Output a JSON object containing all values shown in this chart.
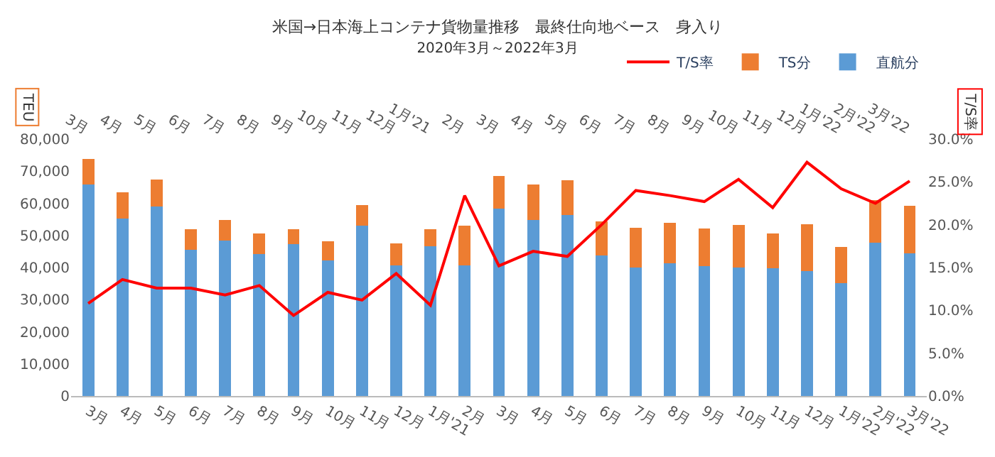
{
  "chart_data": {
    "type": "bar",
    "title": "米国→日本海上コンテナ貨物量推移　最終仕向地ベース　身入り",
    "subtitle": "2020年3月～2022年3月",
    "ylabel": "TEU",
    "y2label": "T/S率",
    "categories": [
      "3月",
      "4月",
      "5月",
      "6月",
      "7月",
      "8月",
      "9月",
      "10月",
      "11月",
      "12月",
      "1月'21",
      "2月",
      "3月",
      "4月",
      "5月",
      "6月",
      "7月",
      "8月",
      "9月",
      "10月",
      "11月",
      "12月",
      "1月'22",
      "2月'22",
      "3月'22"
    ],
    "stacked": true,
    "legend": "top right",
    "grid": false,
    "marker": "none",
    "line_style": "solid",
    "series": [
      {
        "name": "直航分",
        "color": "#5b9bd5",
        "values": [
          65900,
          55200,
          58900,
          45500,
          48400,
          44100,
          47400,
          42300,
          53000,
          40700,
          46600,
          40700,
          58400,
          54800,
          56400,
          43700,
          39900,
          41400,
          40400,
          39900,
          39700,
          39000,
          35200,
          47700,
          44500
        ]
      },
      {
        "name": "TS分",
        "color": "#ed7d31",
        "values": [
          7900,
          8300,
          8400,
          6500,
          6300,
          6400,
          4600,
          5800,
          6400,
          6900,
          5400,
          12300,
          10200,
          11100,
          10800,
          10600,
          12400,
          12600,
          11800,
          13300,
          11000,
          14400,
          11200,
          13300,
          14700
        ]
      },
      {
        "name": "T/S率",
        "type": "line",
        "axis": "y2",
        "color": "#ff0000",
        "values": [
          10.8,
          13.6,
          12.6,
          12.6,
          11.8,
          12.9,
          9.4,
          12.1,
          11.2,
          14.3,
          10.6,
          23.4,
          15.2,
          16.9,
          16.3,
          20.0,
          24.0,
          23.4,
          22.7,
          25.3,
          22.0,
          27.3,
          24.2,
          22.5,
          25.1
        ]
      }
    ],
    "ylim": [
      0,
      80000
    ],
    "yticks": [
      {
        "value": 0,
        "label": "0"
      },
      {
        "value": 10000,
        "label": "10,000"
      },
      {
        "value": 20000,
        "label": "20,000"
      },
      {
        "value": 30000,
        "label": "30,000"
      },
      {
        "value": 40000,
        "label": "40,000"
      },
      {
        "value": 50000,
        "label": "50,000"
      },
      {
        "value": 60000,
        "label": "60,000"
      },
      {
        "value": 70000,
        "label": "70,000"
      },
      {
        "value": 80000,
        "label": "80,000"
      }
    ],
    "y2lim": [
      0,
      30
    ],
    "y2ticks": [
      {
        "value": 0,
        "label": "0.0%"
      },
      {
        "value": 5,
        "label": "5.0%"
      },
      {
        "value": 10,
        "label": "10.0%"
      },
      {
        "value": 15,
        "label": "15.0%"
      },
      {
        "value": 20,
        "label": "20.0%"
      },
      {
        "value": 25,
        "label": "25.0%"
      },
      {
        "value": 30,
        "label": "30.0%"
      }
    ]
  }
}
